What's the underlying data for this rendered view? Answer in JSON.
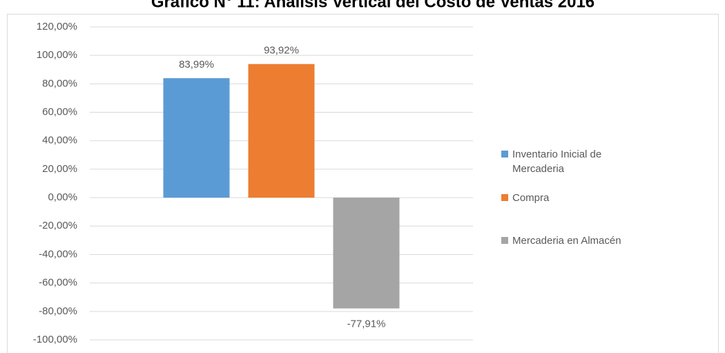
{
  "chart_data": {
    "type": "bar",
    "title": "Gráfico N° 11: Análisis Vertical del Costo de Ventas 2016",
    "series": [
      {
        "name": "Inventario Inicial de Mercaderia",
        "color": "#5b9bd5",
        "values": [
          83.99
        ],
        "value_labels": [
          "83,99%"
        ]
      },
      {
        "name": "Compra",
        "color": "#ed7d31",
        "values": [
          93.92
        ],
        "value_labels": [
          "93,92%"
        ]
      },
      {
        "name": "Mercaderia en Almacén",
        "color": "#a5a5a5",
        "values": [
          -77.91
        ],
        "value_labels": [
          "-77,91%"
        ]
      }
    ],
    "ylim": [
      -100,
      120
    ],
    "yticks": [
      {
        "value": -100,
        "label": "-100,00%"
      },
      {
        "value": -80,
        "label": "-80,00%"
      },
      {
        "value": -60,
        "label": "-60,00%"
      },
      {
        "value": -40,
        "label": "-40,00%"
      },
      {
        "value": -20,
        "label": "-20,00%"
      },
      {
        "value": 0,
        "label": "0,00%"
      },
      {
        "value": 20,
        "label": "20,00%"
      },
      {
        "value": 40,
        "label": "40,00%"
      },
      {
        "value": 60,
        "label": "60,00%"
      },
      {
        "value": 80,
        "label": "80,00%"
      },
      {
        "value": 100,
        "label": "100,00%"
      },
      {
        "value": 120,
        "label": "120,00%"
      }
    ],
    "grid": true,
    "legend": "right"
  }
}
